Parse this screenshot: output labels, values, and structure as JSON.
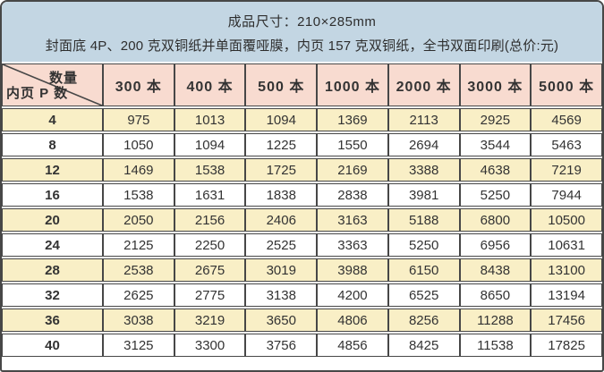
{
  "banner": {
    "line1": "成品尺寸：210×285mm",
    "line2": "封面底 4P、200 克双铜纸并单面覆哑膜，内页 157 克双铜纸，全书双面印刷(总价:元)"
  },
  "table": {
    "corner": {
      "top_right": "数量",
      "bottom_left": "内页 P 数"
    },
    "columns": [
      "300 本",
      "400 本",
      "500 本",
      "1000 本",
      "2000 本",
      "3000 本",
      "5000 本"
    ],
    "rows": [
      {
        "pages": "4",
        "prices": [
          "975",
          "1013",
          "1094",
          "1369",
          "2113",
          "2925",
          "4569"
        ]
      },
      {
        "pages": "8",
        "prices": [
          "1050",
          "1094",
          "1225",
          "1550",
          "2694",
          "3544",
          "5463"
        ]
      },
      {
        "pages": "12",
        "prices": [
          "1469",
          "1538",
          "1725",
          "2169",
          "3388",
          "4638",
          "7219"
        ]
      },
      {
        "pages": "16",
        "prices": [
          "1538",
          "1631",
          "1838",
          "2838",
          "3981",
          "5250",
          "7944"
        ]
      },
      {
        "pages": "20",
        "prices": [
          "2050",
          "2156",
          "2406",
          "3163",
          "5188",
          "6800",
          "10500"
        ]
      },
      {
        "pages": "24",
        "prices": [
          "2125",
          "2250",
          "2525",
          "3363",
          "5250",
          "6956",
          "10631"
        ]
      },
      {
        "pages": "28",
        "prices": [
          "2538",
          "2675",
          "3019",
          "3988",
          "6150",
          "8438",
          "13100"
        ]
      },
      {
        "pages": "32",
        "prices": [
          "2625",
          "2775",
          "3138",
          "4200",
          "6525",
          "8650",
          "13194"
        ]
      },
      {
        "pages": "36",
        "prices": [
          "3038",
          "3219",
          "3650",
          "4806",
          "8256",
          "11288",
          "17456"
        ]
      },
      {
        "pages": "40",
        "prices": [
          "3125",
          "3300",
          "3756",
          "4856",
          "8425",
          "11538",
          "17825"
        ]
      }
    ]
  },
  "colors": {
    "banner_bg": "#c3d6e3",
    "header_bg": "#f8dbd0",
    "row_alt_bg": "#f9efc6",
    "row_bg": "#ffffff",
    "border": "#474747",
    "text": "#333333"
  }
}
